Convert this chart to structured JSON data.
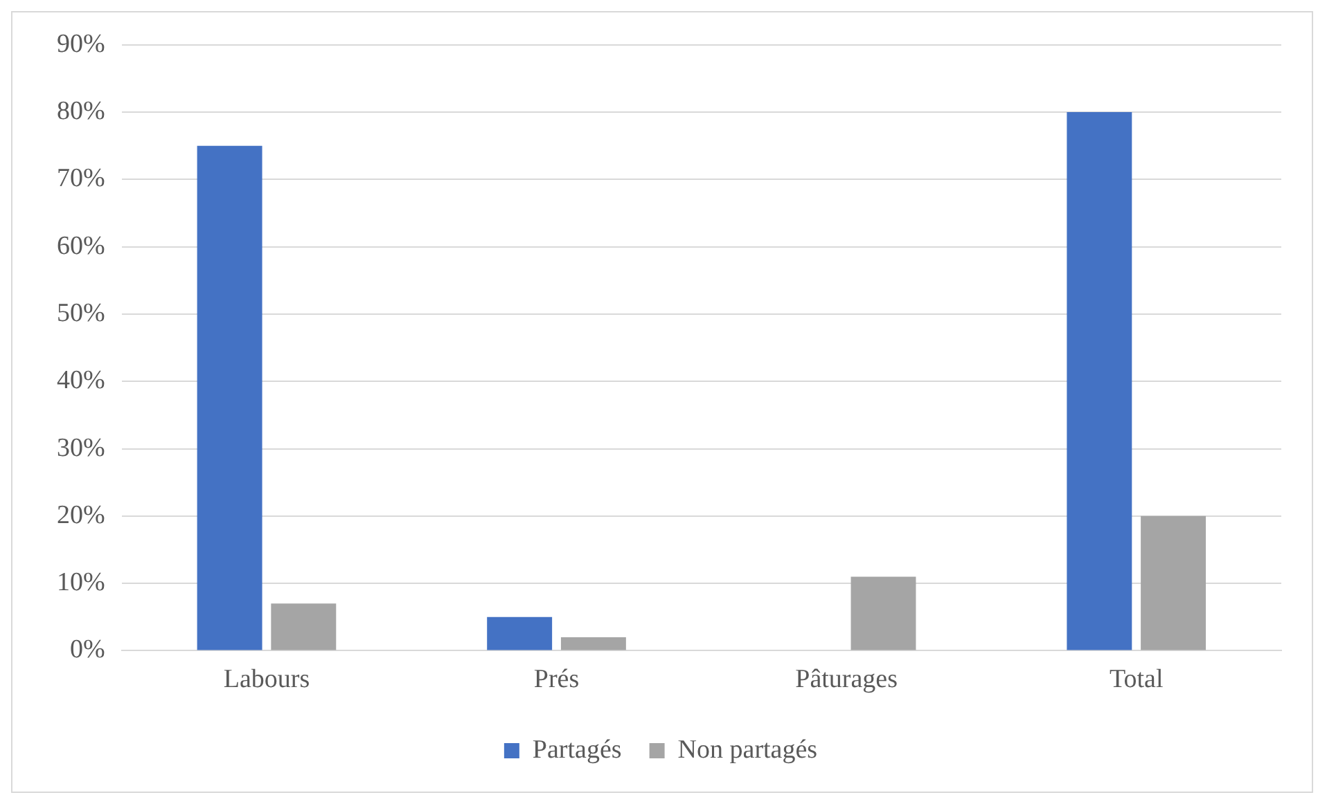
{
  "chart_data": {
    "type": "bar",
    "categories": [
      "Labours",
      "Prés",
      "Pâturages",
      "Total"
    ],
    "series": [
      {
        "name": "Partagés",
        "color": "#4472c4",
        "values": [
          75,
          5,
          0,
          80
        ]
      },
      {
        "name": "Non partagés",
        "color": "#a5a5a5",
        "values": [
          7,
          2,
          11,
          20
        ]
      }
    ],
    "ylim": [
      0,
      90
    ],
    "yticks": [
      {
        "value": 0,
        "label": "0%"
      },
      {
        "value": 10,
        "label": "10%"
      },
      {
        "value": 20,
        "label": "20%"
      },
      {
        "value": 30,
        "label": "30%"
      },
      {
        "value": 40,
        "label": "40%"
      },
      {
        "value": 50,
        "label": "50%"
      },
      {
        "value": 60,
        "label": "60%"
      },
      {
        "value": 70,
        "label": "70%"
      },
      {
        "value": 80,
        "label": "80%"
      },
      {
        "value": 90,
        "label": "90%"
      }
    ],
    "grid": "y",
    "legend": "bottom"
  }
}
